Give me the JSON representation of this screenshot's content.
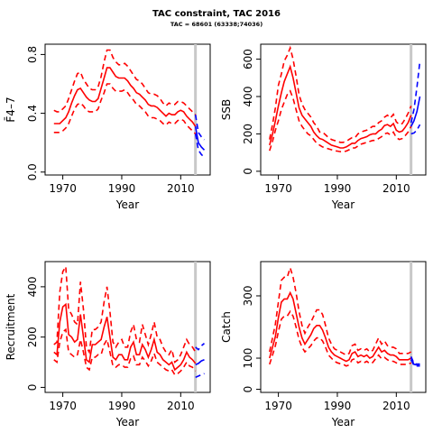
{
  "figure": {
    "title": "TAC constraint, TAC 2016",
    "subtitle": "TAC = 68601 (63338;74036)",
    "assessment_year": 2015,
    "colors": {
      "historical": "#ff0000",
      "projection": "#0000ff",
      "divider": "#c8c8c8"
    }
  },
  "chart_data": [
    {
      "type": "line",
      "title": "",
      "xlabel": "Year",
      "ylabel": "F̄4–7",
      "xlim": [
        1964,
        2020
      ],
      "ylim": [
        -0.02,
        0.87
      ],
      "xticks": [
        1970,
        1990,
        2010
      ],
      "yticks": [
        0.0,
        0.4,
        0.8
      ],
      "historical": {
        "x": [
          1967,
          1968,
          1969,
          1970,
          1971,
          1972,
          1973,
          1974,
          1975,
          1976,
          1977,
          1978,
          1979,
          1980,
          1981,
          1982,
          1983,
          1984,
          1985,
          1986,
          1987,
          1988,
          1989,
          1990,
          1991,
          1992,
          1993,
          1994,
          1995,
          1996,
          1997,
          1998,
          1999,
          2000,
          2001,
          2002,
          2003,
          2004,
          2005,
          2006,
          2007,
          2008,
          2009,
          2010,
          2011,
          2012,
          2013,
          2014,
          2015
        ],
        "median": [
          0.33,
          0.33,
          0.33,
          0.35,
          0.37,
          0.41,
          0.47,
          0.52,
          0.56,
          0.57,
          0.54,
          0.51,
          0.49,
          0.48,
          0.48,
          0.5,
          0.57,
          0.64,
          0.71,
          0.71,
          0.68,
          0.65,
          0.64,
          0.64,
          0.64,
          0.62,
          0.59,
          0.57,
          0.54,
          0.53,
          0.51,
          0.49,
          0.46,
          0.45,
          0.45,
          0.44,
          0.42,
          0.4,
          0.38,
          0.4,
          0.39,
          0.39,
          0.41,
          0.42,
          0.41,
          0.38,
          0.36,
          0.34,
          0.31
        ],
        "upper": [
          0.42,
          0.41,
          0.41,
          0.43,
          0.45,
          0.5,
          0.56,
          0.62,
          0.67,
          0.68,
          0.63,
          0.6,
          0.57,
          0.56,
          0.56,
          0.58,
          0.65,
          0.75,
          0.83,
          0.83,
          0.78,
          0.75,
          0.73,
          0.73,
          0.74,
          0.72,
          0.69,
          0.66,
          0.63,
          0.62,
          0.6,
          0.57,
          0.54,
          0.53,
          0.53,
          0.52,
          0.5,
          0.47,
          0.45,
          0.47,
          0.46,
          0.46,
          0.48,
          0.48,
          0.47,
          0.45,
          0.43,
          0.41,
          0.39
        ],
        "lower": [
          0.27,
          0.27,
          0.27,
          0.28,
          0.3,
          0.33,
          0.38,
          0.43,
          0.46,
          0.47,
          0.45,
          0.42,
          0.41,
          0.41,
          0.41,
          0.43,
          0.49,
          0.54,
          0.6,
          0.6,
          0.57,
          0.55,
          0.55,
          0.55,
          0.56,
          0.54,
          0.51,
          0.49,
          0.46,
          0.45,
          0.43,
          0.41,
          0.38,
          0.37,
          0.37,
          0.36,
          0.35,
          0.33,
          0.32,
          0.34,
          0.33,
          0.33,
          0.35,
          0.36,
          0.35,
          0.32,
          0.3,
          0.28,
          0.26
        ]
      },
      "projection": {
        "x": [
          2015,
          2016,
          2017,
          2018
        ],
        "median": [
          0.31,
          0.2,
          0.17,
          0.15
        ],
        "upper": [
          0.39,
          0.27,
          0.24,
          0.22
        ],
        "lower": [
          0.26,
          0.15,
          0.12,
          0.1
        ]
      }
    },
    {
      "type": "line",
      "title": "",
      "xlabel": "Year",
      "ylabel": "SSB",
      "xlim": [
        1964,
        2020
      ],
      "ylim": [
        -20,
        680
      ],
      "xticks": [
        1970,
        1990,
        2010
      ],
      "yticks": [
        0,
        200,
        400,
        600
      ],
      "historical": {
        "x": [
          1967,
          1968,
          1969,
          1970,
          1971,
          1972,
          1973,
          1974,
          1975,
          1976,
          1977,
          1978,
          1979,
          1980,
          1981,
          1982,
          1983,
          1984,
          1985,
          1986,
          1987,
          1988,
          1989,
          1990,
          1991,
          1992,
          1993,
          1994,
          1995,
          1996,
          1997,
          1998,
          1999,
          2000,
          2001,
          2002,
          2003,
          2004,
          2005,
          2006,
          2007,
          2008,
          2009,
          2010,
          2011,
          2012,
          2013,
          2014,
          2015
        ],
        "median": [
          140,
          200,
          270,
          350,
          420,
          480,
          520,
          560,
          500,
          420,
          340,
          300,
          280,
          260,
          240,
          210,
          190,
          175,
          170,
          160,
          150,
          140,
          135,
          130,
          125,
          125,
          130,
          140,
          150,
          150,
          165,
          175,
          180,
          185,
          195,
          200,
          200,
          215,
          225,
          245,
          250,
          240,
          255,
          220,
          210,
          215,
          235,
          260,
          300
        ],
        "upper": [
          170,
          250,
          340,
          460,
          520,
          590,
          620,
          660,
          600,
          510,
          410,
          360,
          330,
          310,
          290,
          260,
          240,
          210,
          210,
          195,
          180,
          170,
          165,
          160,
          155,
          155,
          160,
          170,
          180,
          180,
          200,
          210,
          215,
          220,
          230,
          240,
          240,
          260,
          270,
          290,
          300,
          285,
          305,
          265,
          250,
          255,
          280,
          310,
          350
        ],
        "lower": [
          110,
          160,
          220,
          270,
          330,
          370,
          410,
          430,
          390,
          330,
          270,
          240,
          220,
          200,
          190,
          170,
          150,
          140,
          130,
          125,
          120,
          115,
          110,
          108,
          105,
          105,
          108,
          115,
          125,
          125,
          135,
          145,
          150,
          155,
          160,
          165,
          165,
          175,
          185,
          200,
          205,
          195,
          210,
          180,
          170,
          175,
          190,
          210,
          240
        ]
      },
      "projection": {
        "x": [
          2015,
          2016,
          2017,
          2018
        ],
        "median": [
          240,
          270,
          320,
          400
        ],
        "upper": [
          260,
          330,
          450,
          590
        ],
        "lower": [
          200,
          205,
          220,
          250
        ]
      }
    },
    {
      "type": "line",
      "title": "",
      "xlabel": "Year",
      "ylabel": "Recruitment",
      "xlim": [
        1964,
        2020
      ],
      "ylim": [
        -20,
        500
      ],
      "xticks": [
        1970,
        1990,
        2010
      ],
      "yticks": [
        0,
        200,
        400
      ],
      "historical": {
        "x": [
          1967,
          1968,
          1969,
          1970,
          1971,
          1972,
          1973,
          1974,
          1975,
          1976,
          1977,
          1978,
          1979,
          1980,
          1981,
          1982,
          1983,
          1984,
          1985,
          1986,
          1987,
          1988,
          1989,
          1990,
          1991,
          1992,
          1993,
          1994,
          1995,
          1996,
          1997,
          1998,
          1999,
          2000,
          2001,
          2002,
          2003,
          2004,
          2005,
          2006,
          2007,
          2008,
          2009,
          2010,
          2011,
          2012,
          2013,
          2014,
          2015
        ],
        "median": [
          140,
          130,
          260,
          320,
          330,
          210,
          200,
          180,
          190,
          290,
          200,
          110,
          100,
          170,
          170,
          180,
          190,
          240,
          280,
          200,
          120,
          110,
          130,
          130,
          110,
          110,
          160,
          180,
          130,
          130,
          170,
          150,
          120,
          150,
          190,
          140,
          130,
          110,
          100,
          90,
          100,
          70,
          80,
          90,
          110,
          140,
          120,
          110,
          95
        ],
        "upper": [
          170,
          180,
          380,
          460,
          480,
          310,
          290,
          260,
          250,
          420,
          310,
          160,
          140,
          230,
          230,
          240,
          260,
          340,
          400,
          300,
          180,
          160,
          180,
          190,
          160,
          160,
          220,
          250,
          190,
          180,
          250,
          210,
          170,
          210,
          260,
          200,
          190,
          160,
          140,
          130,
          150,
          100,
          110,
          130,
          160,
          190,
          170,
          160,
          140
        ],
        "lower": [
          110,
          100,
          180,
          220,
          230,
          140,
          130,
          120,
          130,
          190,
          140,
          80,
          70,
          120,
          120,
          130,
          130,
          170,
          190,
          140,
          85,
          80,
          90,
          90,
          80,
          80,
          115,
          125,
          90,
          90,
          120,
          105,
          85,
          105,
          135,
          100,
          90,
          80,
          70,
          65,
          70,
          50,
          55,
          65,
          80,
          100,
          85,
          80,
          65
        ]
      },
      "projection": {
        "x": [
          2015,
          2016,
          2017,
          2018
        ],
        "median": [
          90,
          95,
          105,
          110
        ],
        "upper": [
          160,
          150,
          165,
          175
        ],
        "lower": [
          40,
          45,
          50,
          55
        ]
      }
    },
    {
      "type": "line",
      "title": "",
      "xlabel": "Year",
      "ylabel": "Catch",
      "xlim": [
        1964,
        2020
      ],
      "ylim": [
        -10,
        410
      ],
      "xticks": [
        1970,
        1990,
        2010
      ],
      "yticks": [
        0,
        100,
        300
      ],
      "historical": {
        "x": [
          1967,
          1968,
          1969,
          1970,
          1971,
          1972,
          1973,
          1974,
          1975,
          1976,
          1977,
          1978,
          1979,
          1980,
          1981,
          1982,
          1983,
          1984,
          1985,
          1986,
          1987,
          1988,
          1989,
          1990,
          1991,
          1992,
          1993,
          1994,
          1995,
          1996,
          1997,
          1998,
          1999,
          2000,
          2001,
          2002,
          2003,
          2004,
          2005,
          2006,
          2007,
          2008,
          2009,
          2010,
          2011,
          2012,
          2013,
          2014,
          2015
        ],
        "median": [
          100,
          135,
          170,
          230,
          280,
          290,
          290,
          310,
          290,
          245,
          200,
          165,
          145,
          160,
          175,
          195,
          205,
          205,
          190,
          165,
          135,
          120,
          110,
          105,
          100,
          95,
          90,
          95,
          115,
          120,
          105,
          110,
          105,
          110,
          100,
          105,
          120,
          135,
          120,
          125,
          115,
          110,
          110,
          105,
          95,
          95,
          95,
          95,
          100
        ],
        "upper": [
          120,
          165,
          210,
          280,
          350,
          360,
          360,
          390,
          360,
          310,
          250,
          205,
          180,
          200,
          215,
          235,
          255,
          255,
          240,
          205,
          165,
          145,
          130,
          125,
          120,
          115,
          110,
          115,
          140,
          145,
          125,
          130,
          125,
          130,
          120,
          125,
          145,
          165,
          145,
          155,
          140,
          135,
          135,
          130,
          115,
          115,
          115,
          115,
          120
        ],
        "lower": [
          80,
          110,
          140,
          185,
          225,
          235,
          235,
          250,
          235,
          200,
          160,
          135,
          120,
          130,
          140,
          155,
          165,
          165,
          155,
          135,
          110,
          100,
          90,
          85,
          82,
          80,
          75,
          78,
          95,
          98,
          85,
          90,
          85,
          90,
          82,
          86,
          98,
          110,
          98,
          102,
          95,
          90,
          90,
          85,
          80,
          80,
          80,
          80,
          85
        ]
      },
      "projection": {
        "x": [
          2015,
          2016,
          2017,
          2018
        ],
        "median": [
          100,
          80,
          78,
          78
        ],
        "upper": [
          105,
          83,
          81,
          81
        ],
        "lower": [
          95,
          77,
          75,
          75
        ]
      }
    }
  ]
}
